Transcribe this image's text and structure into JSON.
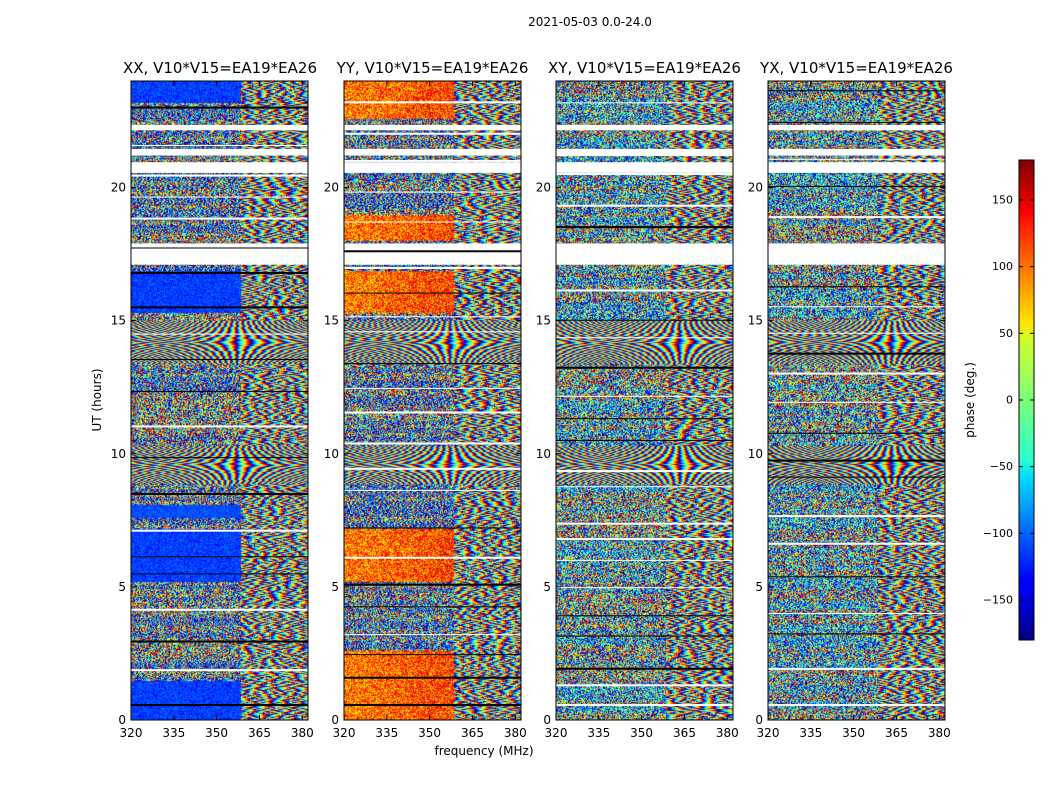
{
  "figure": {
    "suptitle": "2021-05-03 0.0-24.0"
  },
  "chart_data": [
    {
      "type": "heatmap",
      "title": "XX, V10*V15=EA19*EA26",
      "xlabel": "",
      "ylabel": "UT (hours)",
      "xlim": [
        320,
        382
      ],
      "ylim": [
        0,
        24
      ],
      "xticks": [
        "320",
        "335",
        "350",
        "365",
        "380"
      ],
      "yticks": [
        "0",
        "5",
        "10",
        "15",
        "20"
      ],
      "style": "xx"
    },
    {
      "type": "heatmap",
      "title": "YY, V10*V15=EA19*EA26",
      "xlabel": "frequency (MHz)",
      "ylabel": "",
      "xlim": [
        320,
        382
      ],
      "ylim": [
        0,
        24
      ],
      "xticks": [
        "320",
        "335",
        "350",
        "365",
        "380"
      ],
      "yticks": [
        "0",
        "5",
        "10",
        "15",
        "20"
      ],
      "style": "yy"
    },
    {
      "type": "heatmap",
      "title": "XY, V10*V15=EA19*EA26",
      "xlabel": "",
      "ylabel": "",
      "xlim": [
        320,
        382
      ],
      "ylim": [
        0,
        24
      ],
      "xticks": [
        "320",
        "335",
        "350",
        "365",
        "380"
      ],
      "yticks": [
        "0",
        "5",
        "10",
        "15",
        "20"
      ],
      "style": "xy"
    },
    {
      "type": "heatmap",
      "title": "YX, V10*V15=EA19*EA26",
      "xlabel": "",
      "ylabel": "",
      "xlim": [
        320,
        382
      ],
      "ylim": [
        0,
        24
      ],
      "xticks": [
        "320",
        "335",
        "350",
        "365",
        "380"
      ],
      "yticks": [
        "0",
        "5",
        "10",
        "15",
        "20"
      ],
      "style": "yx"
    }
  ],
  "colorbar": {
    "label": "phase (deg.)",
    "range": [
      -180,
      180
    ],
    "ticks": [
      "150",
      "100",
      "50",
      "0",
      "−50",
      "−100",
      "−150"
    ],
    "tick_values": [
      150,
      100,
      50,
      0,
      -50,
      -100,
      -150
    ],
    "colormap": "jet"
  },
  "gaps_ut_hours": [
    [
      17.1,
      17.9
    ],
    [
      20.55,
      20.95
    ],
    [
      21.2,
      21.45
    ],
    [
      22.15,
      22.35
    ]
  ]
}
